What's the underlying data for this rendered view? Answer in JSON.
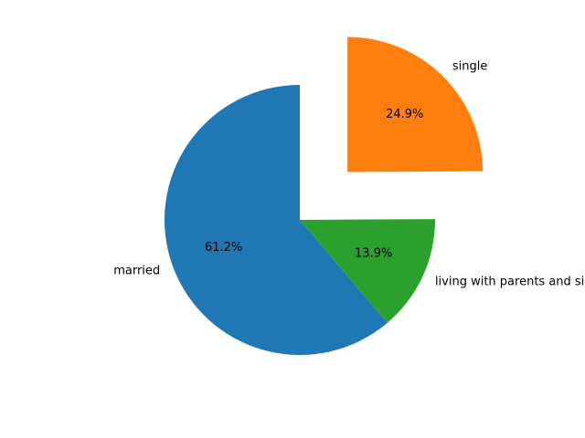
{
  "chart_data": {
    "type": "pie",
    "start_angle_deg": 90,
    "direction": "counterclockwise",
    "slices": [
      {
        "label": "married",
        "value": 61.2,
        "percent_text": "61.2%",
        "color": "#1f77b4",
        "explode": 0
      },
      {
        "label": "living with parents and siblings",
        "value": 13.9,
        "percent_text": "13.9%",
        "color": "#2ca02c",
        "explode": 0
      },
      {
        "label": "single",
        "value": 24.9,
        "percent_text": "24.9%",
        "color": "#ff7f0e",
        "explode": 0.5
      }
    ]
  }
}
